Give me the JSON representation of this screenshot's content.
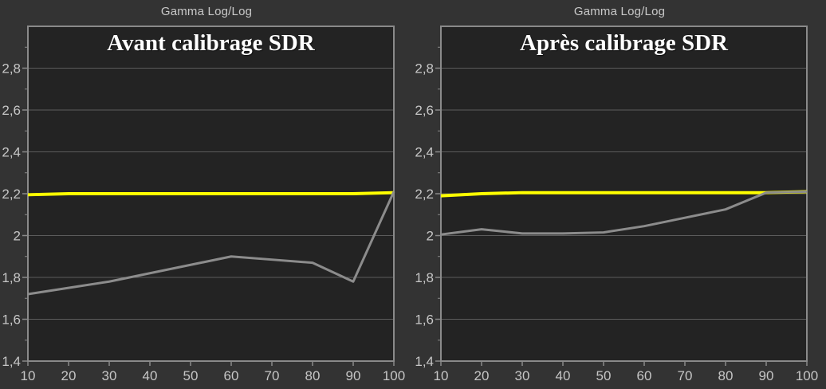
{
  "colors": {
    "page_bg": "#333333",
    "plot_bg": "#232323",
    "grid": "#5c5c5c",
    "border": "#8a8a8a",
    "tick_text": "#c6c6c6",
    "header_text": "#c9c9c9",
    "title_text": "#ffffff",
    "target_line": "#ffff00",
    "measured_line": "#8c8c8c"
  },
  "chart_data": [
    {
      "type": "line",
      "panel_title": "Gamma Log/Log",
      "title": "Avant calibrage SDR",
      "x": [
        10,
        20,
        30,
        40,
        50,
        60,
        70,
        80,
        90,
        100
      ],
      "xtick_labels": [
        "10",
        "20",
        "30",
        "40",
        "50",
        "60",
        "70",
        "80",
        "90",
        "100"
      ],
      "xlabel": "",
      "ylabel": "",
      "ylim": [
        1.4,
        3.0
      ],
      "yticks": [
        1.4,
        1.6,
        1.8,
        2.0,
        2.2,
        2.4,
        2.6,
        2.8
      ],
      "ytick_labels": [
        "1,4",
        "1,6",
        "1,8",
        "2",
        "2,2",
        "2,4",
        "2,6",
        "2,8"
      ],
      "y_minor_ticks": [
        1.5,
        1.7,
        1.9,
        2.1,
        2.3,
        2.5,
        2.7,
        2.9
      ],
      "grid": "horizontal-only",
      "legend_position": "none",
      "series": [
        {
          "name": "target-gamma-2.2",
          "color": "#ffff00",
          "width": 4,
          "values": [
            2.195,
            2.2,
            2.2,
            2.2,
            2.2,
            2.2,
            2.2,
            2.2,
            2.2,
            2.205
          ]
        },
        {
          "name": "measured-gamma",
          "color": "#8c8c8c",
          "width": 3,
          "values": [
            1.72,
            1.75,
            1.78,
            1.82,
            1.86,
            1.9,
            1.885,
            1.87,
            1.78,
            2.21
          ]
        }
      ]
    },
    {
      "type": "line",
      "panel_title": "Gamma Log/Log",
      "title": "Après calibrage SDR",
      "x": [
        10,
        20,
        30,
        40,
        50,
        60,
        70,
        80,
        90,
        100
      ],
      "xtick_labels": [
        "10",
        "20",
        "30",
        "40",
        "50",
        "60",
        "70",
        "80",
        "90",
        "100"
      ],
      "xlabel": "",
      "ylabel": "",
      "ylim": [
        1.4,
        3.0
      ],
      "yticks": [
        1.4,
        1.6,
        1.8,
        2.0,
        2.2,
        2.4,
        2.6,
        2.8
      ],
      "ytick_labels": [
        "1,4",
        "1,6",
        "1,8",
        "2",
        "2,2",
        "2,4",
        "2,6",
        "2,8"
      ],
      "y_minor_ticks": [
        1.5,
        1.7,
        1.9,
        2.1,
        2.3,
        2.5,
        2.7,
        2.9
      ],
      "grid": "horizontal-only",
      "legend_position": "none",
      "series": [
        {
          "name": "target-gamma-2.2",
          "color": "#ffff00",
          "width": 4,
          "values": [
            2.19,
            2.2,
            2.205,
            2.205,
            2.205,
            2.205,
            2.205,
            2.205,
            2.205,
            2.21
          ]
        },
        {
          "name": "measured-gamma",
          "color": "#8c8c8c",
          "width": 3,
          "values": [
            2.005,
            2.03,
            2.01,
            2.01,
            2.015,
            2.045,
            2.085,
            2.125,
            2.205,
            2.21
          ]
        }
      ]
    }
  ]
}
